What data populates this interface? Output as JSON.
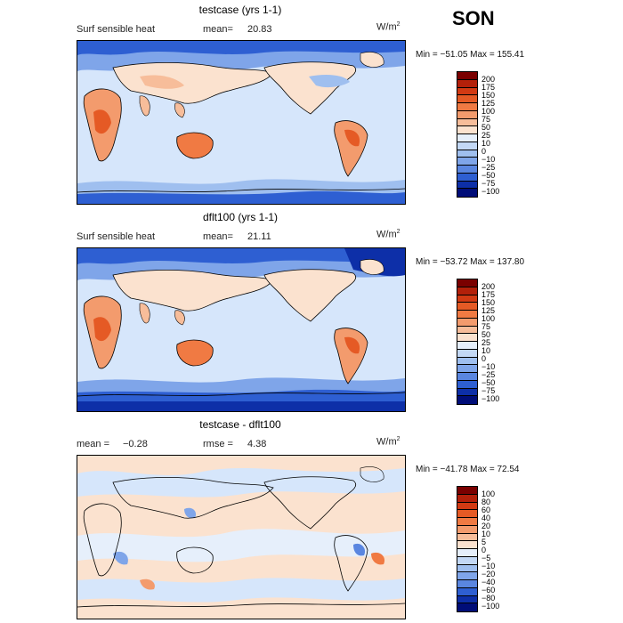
{
  "season": "SON",
  "panels": [
    {
      "title": "testcase (yrs 1-1)",
      "left_label": "Surf sensible heat",
      "stat_label": "mean=",
      "stat_value": "20.83",
      "units_base": "W/m",
      "units_exp": "2",
      "minmax": "Min = −51.05  Max = 155.41",
      "legend": [
        "200",
        "175",
        "150",
        "125",
        "100",
        "75",
        "50",
        "25",
        "10",
        "0",
        "−10",
        "−25",
        "−50",
        "−75",
        "−100"
      ]
    },
    {
      "title": "dflt100 (yrs 1-1)",
      "left_label": "Surf sensible heat",
      "stat_label": "mean=",
      "stat_value": "21.11",
      "units_base": "W/m",
      "units_exp": "2",
      "minmax": "Min = −53.72  Max = 137.80",
      "legend": [
        "200",
        "175",
        "150",
        "125",
        "100",
        "75",
        "50",
        "25",
        "10",
        "0",
        "−10",
        "−25",
        "−50",
        "−75",
        "−100"
      ]
    },
    {
      "title": "testcase - dflt100",
      "left_label": "mean =",
      "left_value": "−0.28",
      "stat_label": "rmse =",
      "stat_value": "4.38",
      "units_base": "W/m",
      "units_exp": "2",
      "minmax": "Min = −41.78  Max =  72.54",
      "legend": [
        "100",
        "80",
        "60",
        "40",
        "20",
        "10",
        "5",
        "0",
        "−5",
        "−10",
        "−20",
        "−40",
        "−60",
        "−80",
        "−100"
      ]
    }
  ],
  "colors": {
    "abs_scale": [
      "#7a0000",
      "#b3200a",
      "#d23a13",
      "#e55a25",
      "#f07a43",
      "#f39b6d",
      "#f7bd9a",
      "#fbe2cf",
      "#e6effb",
      "#c3d8f5",
      "#9fbfef",
      "#7fa5e9",
      "#5a86e0",
      "#2e5fd2",
      "#0d2fa8",
      "#000d78"
    ],
    "diff_scale": [
      "#7a0000",
      "#b3200a",
      "#d23a13",
      "#e55a25",
      "#f07a43",
      "#f39b6d",
      "#f7bd9a",
      "#fbe2cf",
      "#e6effb",
      "#c3d8f5",
      "#9fbfef",
      "#7fa5e9",
      "#5a86e0",
      "#2e5fd2",
      "#0d2fa8",
      "#000d78"
    ]
  }
}
